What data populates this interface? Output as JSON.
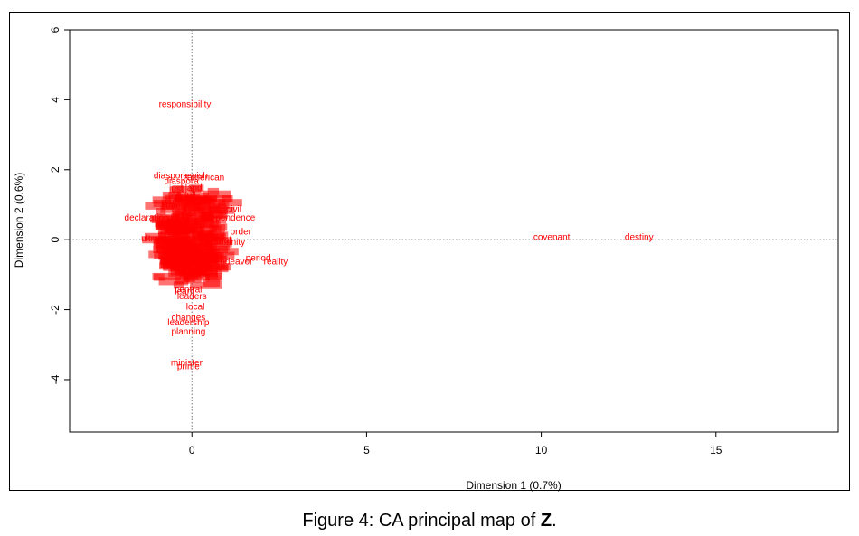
{
  "caption": {
    "prefix": "Figure 4: CA principal map of ",
    "bold": "Z",
    "suffix": "."
  },
  "chart_data": {
    "type": "scatter",
    "xlabel": "Dimension 1 (0.7%)",
    "ylabel": "Dimension 2 (0.6%)",
    "xlim": [
      -3.5,
      18.5
    ],
    "ylim": [
      -5.5,
      6.0
    ],
    "xticks": [
      0,
      5,
      10,
      15
    ],
    "yticks": [
      -4,
      -2,
      0,
      2,
      4,
      6
    ],
    "reference_lines": {
      "x": 0,
      "y": 0,
      "style": "dotted"
    },
    "grid": false,
    "point_color": "#ff0000",
    "points": [
      {
        "label": "responsibility",
        "x": -0.2,
        "y": 3.9
      },
      {
        "label": "diaspora",
        "x": -0.6,
        "y": 1.85
      },
      {
        "label": "jewish",
        "x": 0.1,
        "y": 1.85
      },
      {
        "label": "american",
        "x": 0.4,
        "y": 1.8
      },
      {
        "label": "diaspora",
        "x": -0.3,
        "y": 1.7
      },
      {
        "label": "land",
        "x": 0.05,
        "y": 1.5
      },
      {
        "label": "just",
        "x": -0.45,
        "y": 1.48
      },
      {
        "label": "full",
        "x": -0.05,
        "y": 1.3
      },
      {
        "label": "hope",
        "x": -0.15,
        "y": 1.2
      },
      {
        "label": "people",
        "x": 0.3,
        "y": 1.15
      },
      {
        "label": "israel",
        "x": -0.45,
        "y": 1.1
      },
      {
        "label": "state",
        "x": -0.6,
        "y": 1.0
      },
      {
        "label": "civil",
        "x": 1.2,
        "y": 0.9
      },
      {
        "label": "declaration",
        "x": -1.3,
        "y": 0.65
      },
      {
        "label": "independence",
        "x": 1.0,
        "y": 0.65
      },
      {
        "label": "covenant",
        "x": 10.3,
        "y": 0.1
      },
      {
        "label": "destiny",
        "x": 12.8,
        "y": 0.1
      },
      {
        "label": "ultra",
        "x": -1.2,
        "y": 0.05
      },
      {
        "label": "order",
        "x": 1.4,
        "y": 0.25
      },
      {
        "label": "moral",
        "x": 0.8,
        "y": 0.0
      },
      {
        "label": "community",
        "x": 0.9,
        "y": -0.05
      },
      {
        "label": "endeavor",
        "x": 1.2,
        "y": -0.6
      },
      {
        "label": "period",
        "x": 1.9,
        "y": -0.5
      },
      {
        "label": "reality",
        "x": 2.4,
        "y": -0.6
      },
      {
        "label": "justice",
        "x": 0.5,
        "y": -0.4
      },
      {
        "label": "ties",
        "x": 0.6,
        "y": -0.75
      },
      {
        "label": "leaders",
        "x": 0.0,
        "y": -1.6
      },
      {
        "label": "central",
        "x": -0.1,
        "y": -1.4
      },
      {
        "label": "learn",
        "x": -0.2,
        "y": -1.45
      },
      {
        "label": "local",
        "x": 0.1,
        "y": -1.9
      },
      {
        "label": "changes",
        "x": -0.1,
        "y": -2.2
      },
      {
        "label": "leadership",
        "x": -0.1,
        "y": -2.35
      },
      {
        "label": "planning",
        "x": -0.1,
        "y": -2.6
      },
      {
        "label": "minister",
        "x": -0.15,
        "y": -3.5
      },
      {
        "label": "prime",
        "x": -0.1,
        "y": -3.6
      }
    ]
  }
}
